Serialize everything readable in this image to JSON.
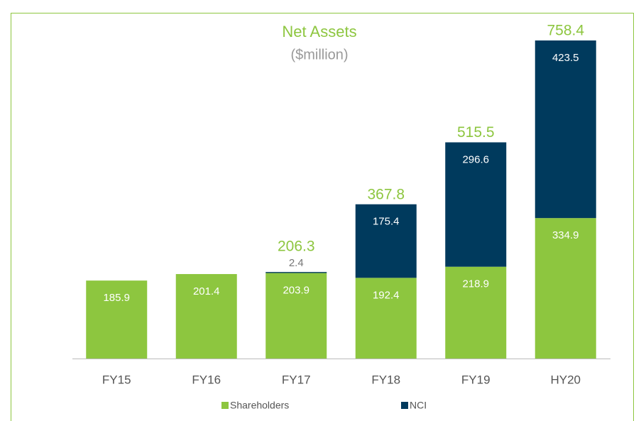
{
  "chart_data": {
    "type": "stacked-bar",
    "title": "Net Assets",
    "subtitle": "($million)",
    "categories": [
      "FY15",
      "FY16",
      "FY17",
      "FY18",
      "FY19",
      "HY20"
    ],
    "series": [
      {
        "name": "Shareholders",
        "color": "#8dc63f",
        "values": [
          185.9,
          201.4,
          203.9,
          192.4,
          218.9,
          334.9
        ]
      },
      {
        "name": "NCI",
        "color": "#003a5d",
        "values": [
          null,
          null,
          2.4,
          175.4,
          296.6,
          423.5
        ]
      }
    ],
    "total_labels": [
      null,
      null,
      "206.3",
      "367.8",
      "515.5",
      "758.4"
    ]
  }
}
